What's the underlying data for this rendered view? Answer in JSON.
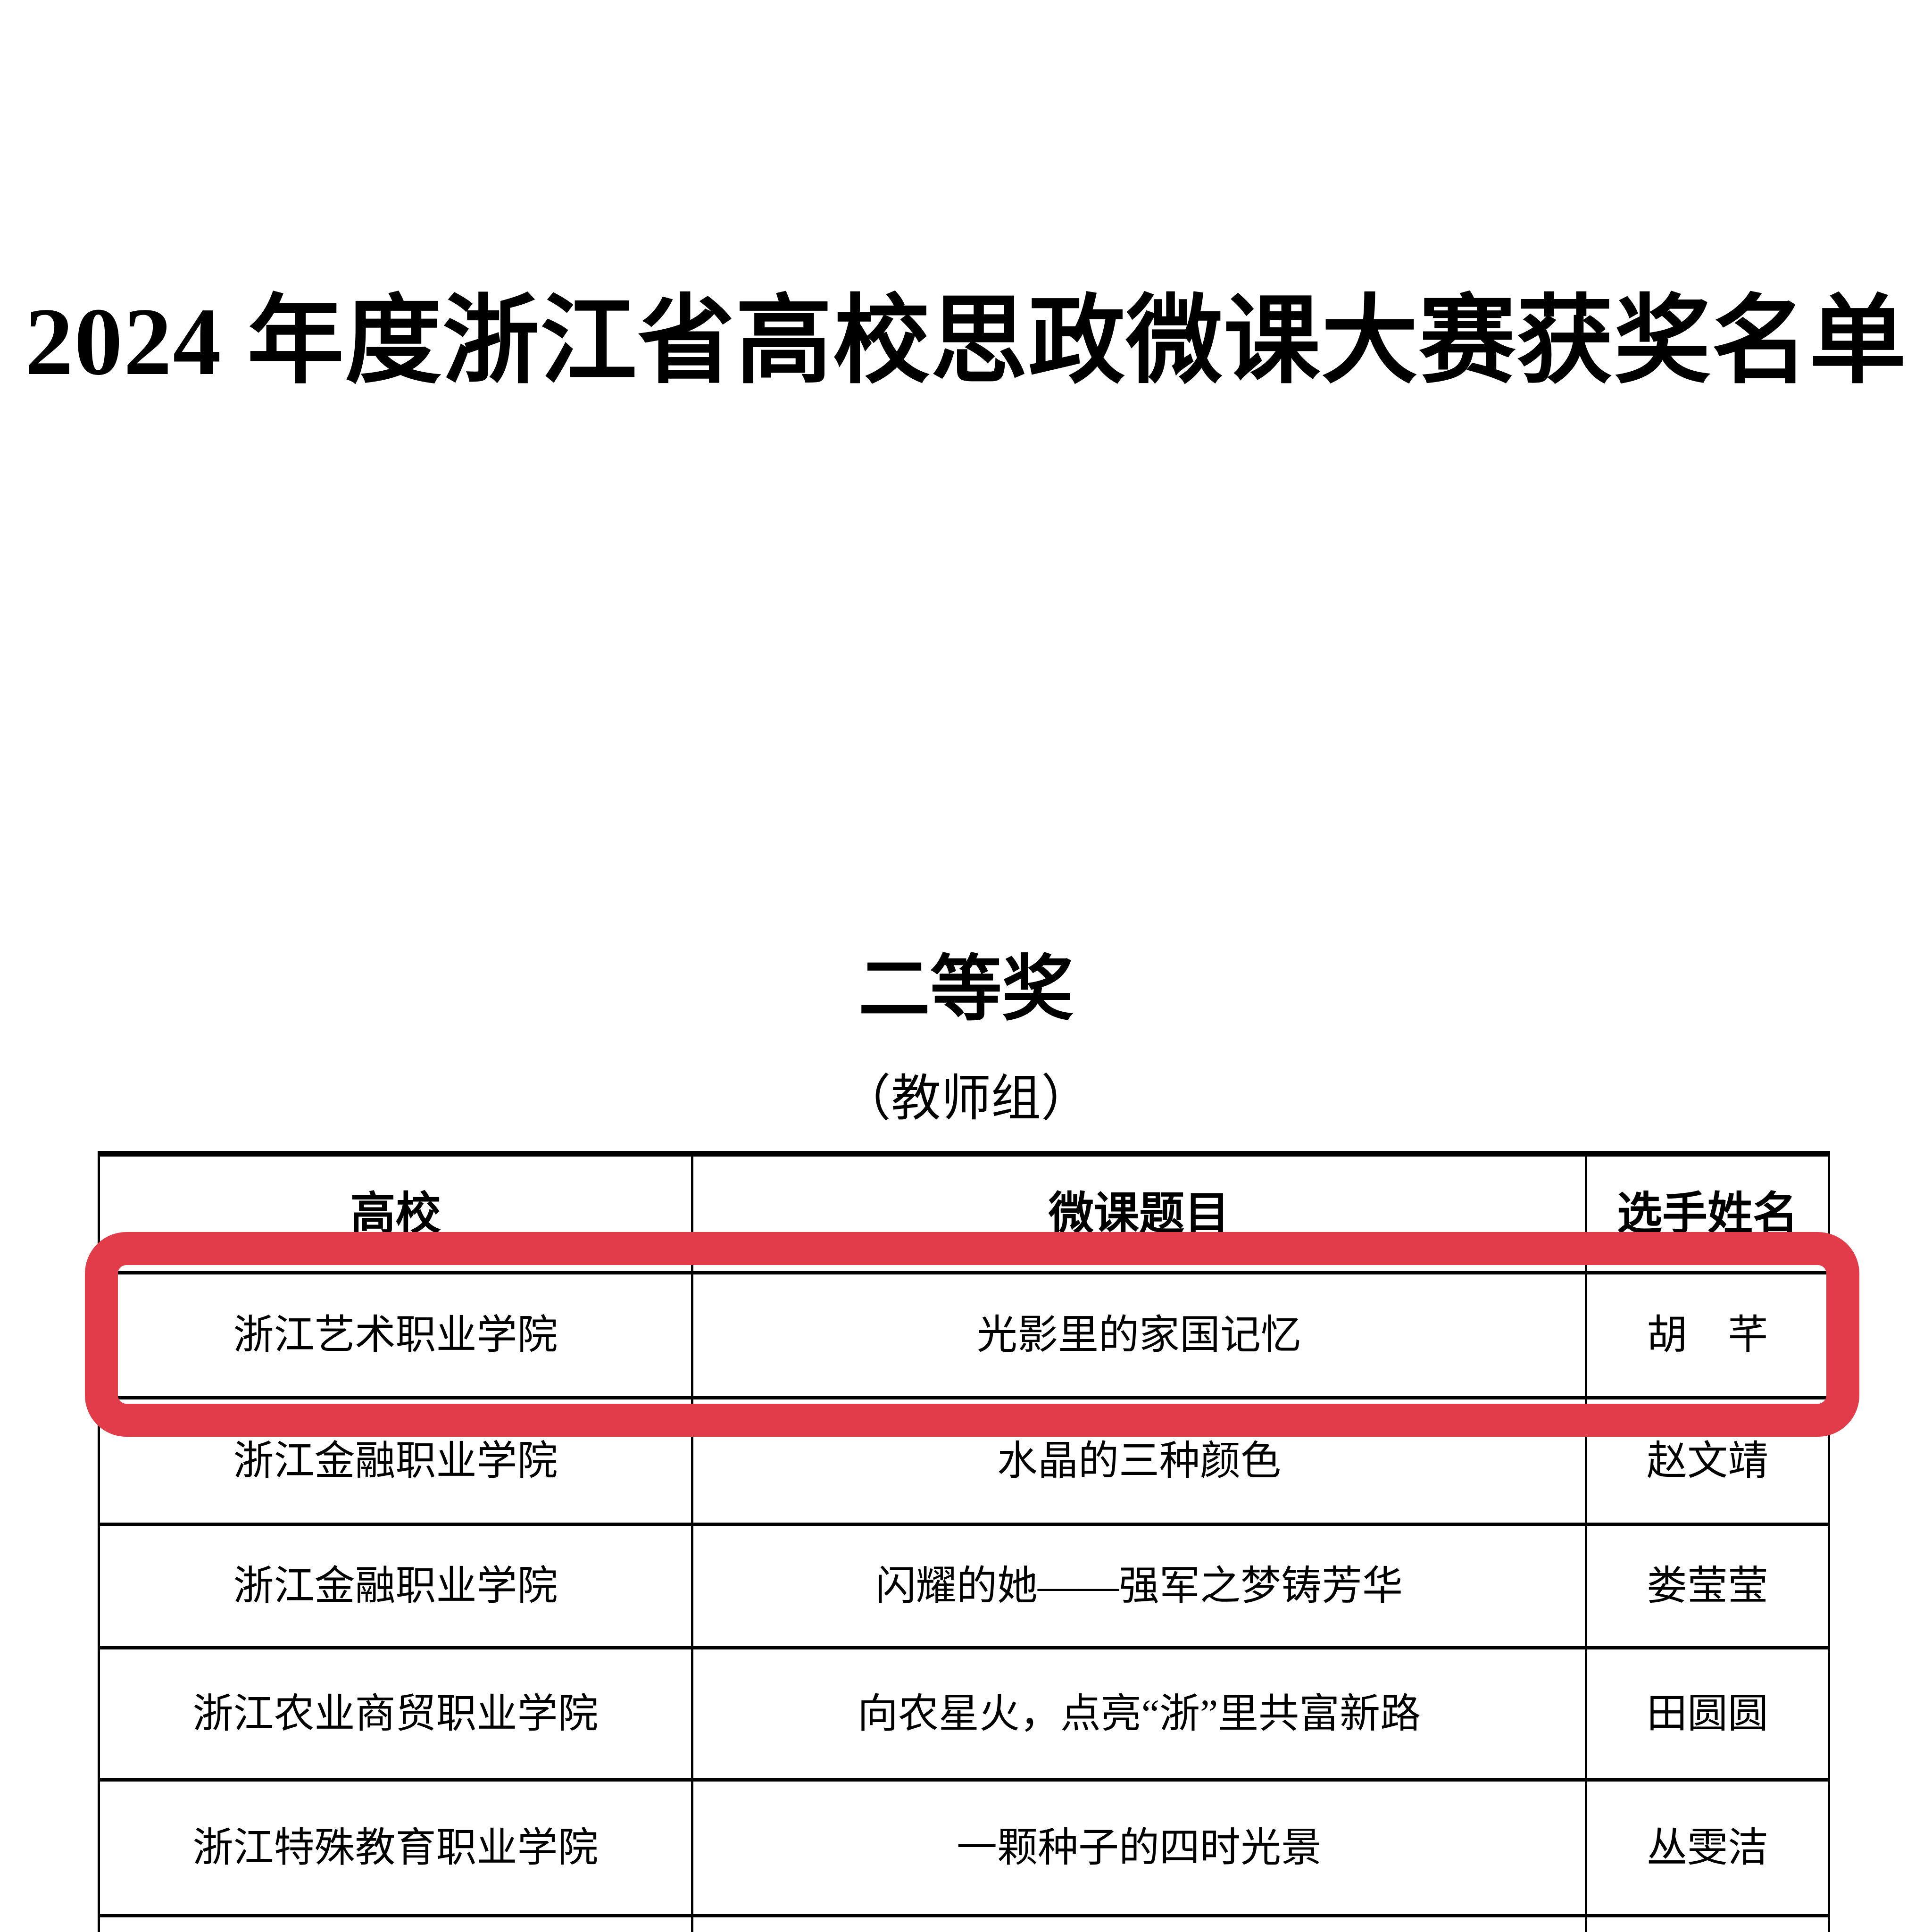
{
  "doc": {
    "title": "2024 年度浙江省高校思政微课大赛获奖名单",
    "award_level": "二等奖",
    "group": "（教师组）",
    "highlight_color": "#e23c4a"
  },
  "table": {
    "headers": [
      "高校",
      "微课题目",
      "选手姓名"
    ],
    "rows": [
      {
        "school": "浙江艺术职业学院",
        "title": "光影里的家国记忆",
        "name": "胡　芊",
        "highlighted": true
      },
      {
        "school": "浙江金融职业学院",
        "title": "水晶的三种颜色",
        "name": "赵文靖",
        "highlighted": false
      },
      {
        "school": "浙江金融职业学院",
        "title": "闪耀的她——强军之梦铸芳华",
        "name": "娄莹莹",
        "highlighted": false
      },
      {
        "school": "浙江农业商贸职业学院",
        "title": "向农星火，点亮“浙”里共富新路",
        "name": "田圆圆",
        "highlighted": false
      },
      {
        "school": "浙江特殊教育职业学院",
        "title": "一颗种子的四时光景",
        "name": "丛雯洁",
        "highlighted": false
      }
    ]
  }
}
